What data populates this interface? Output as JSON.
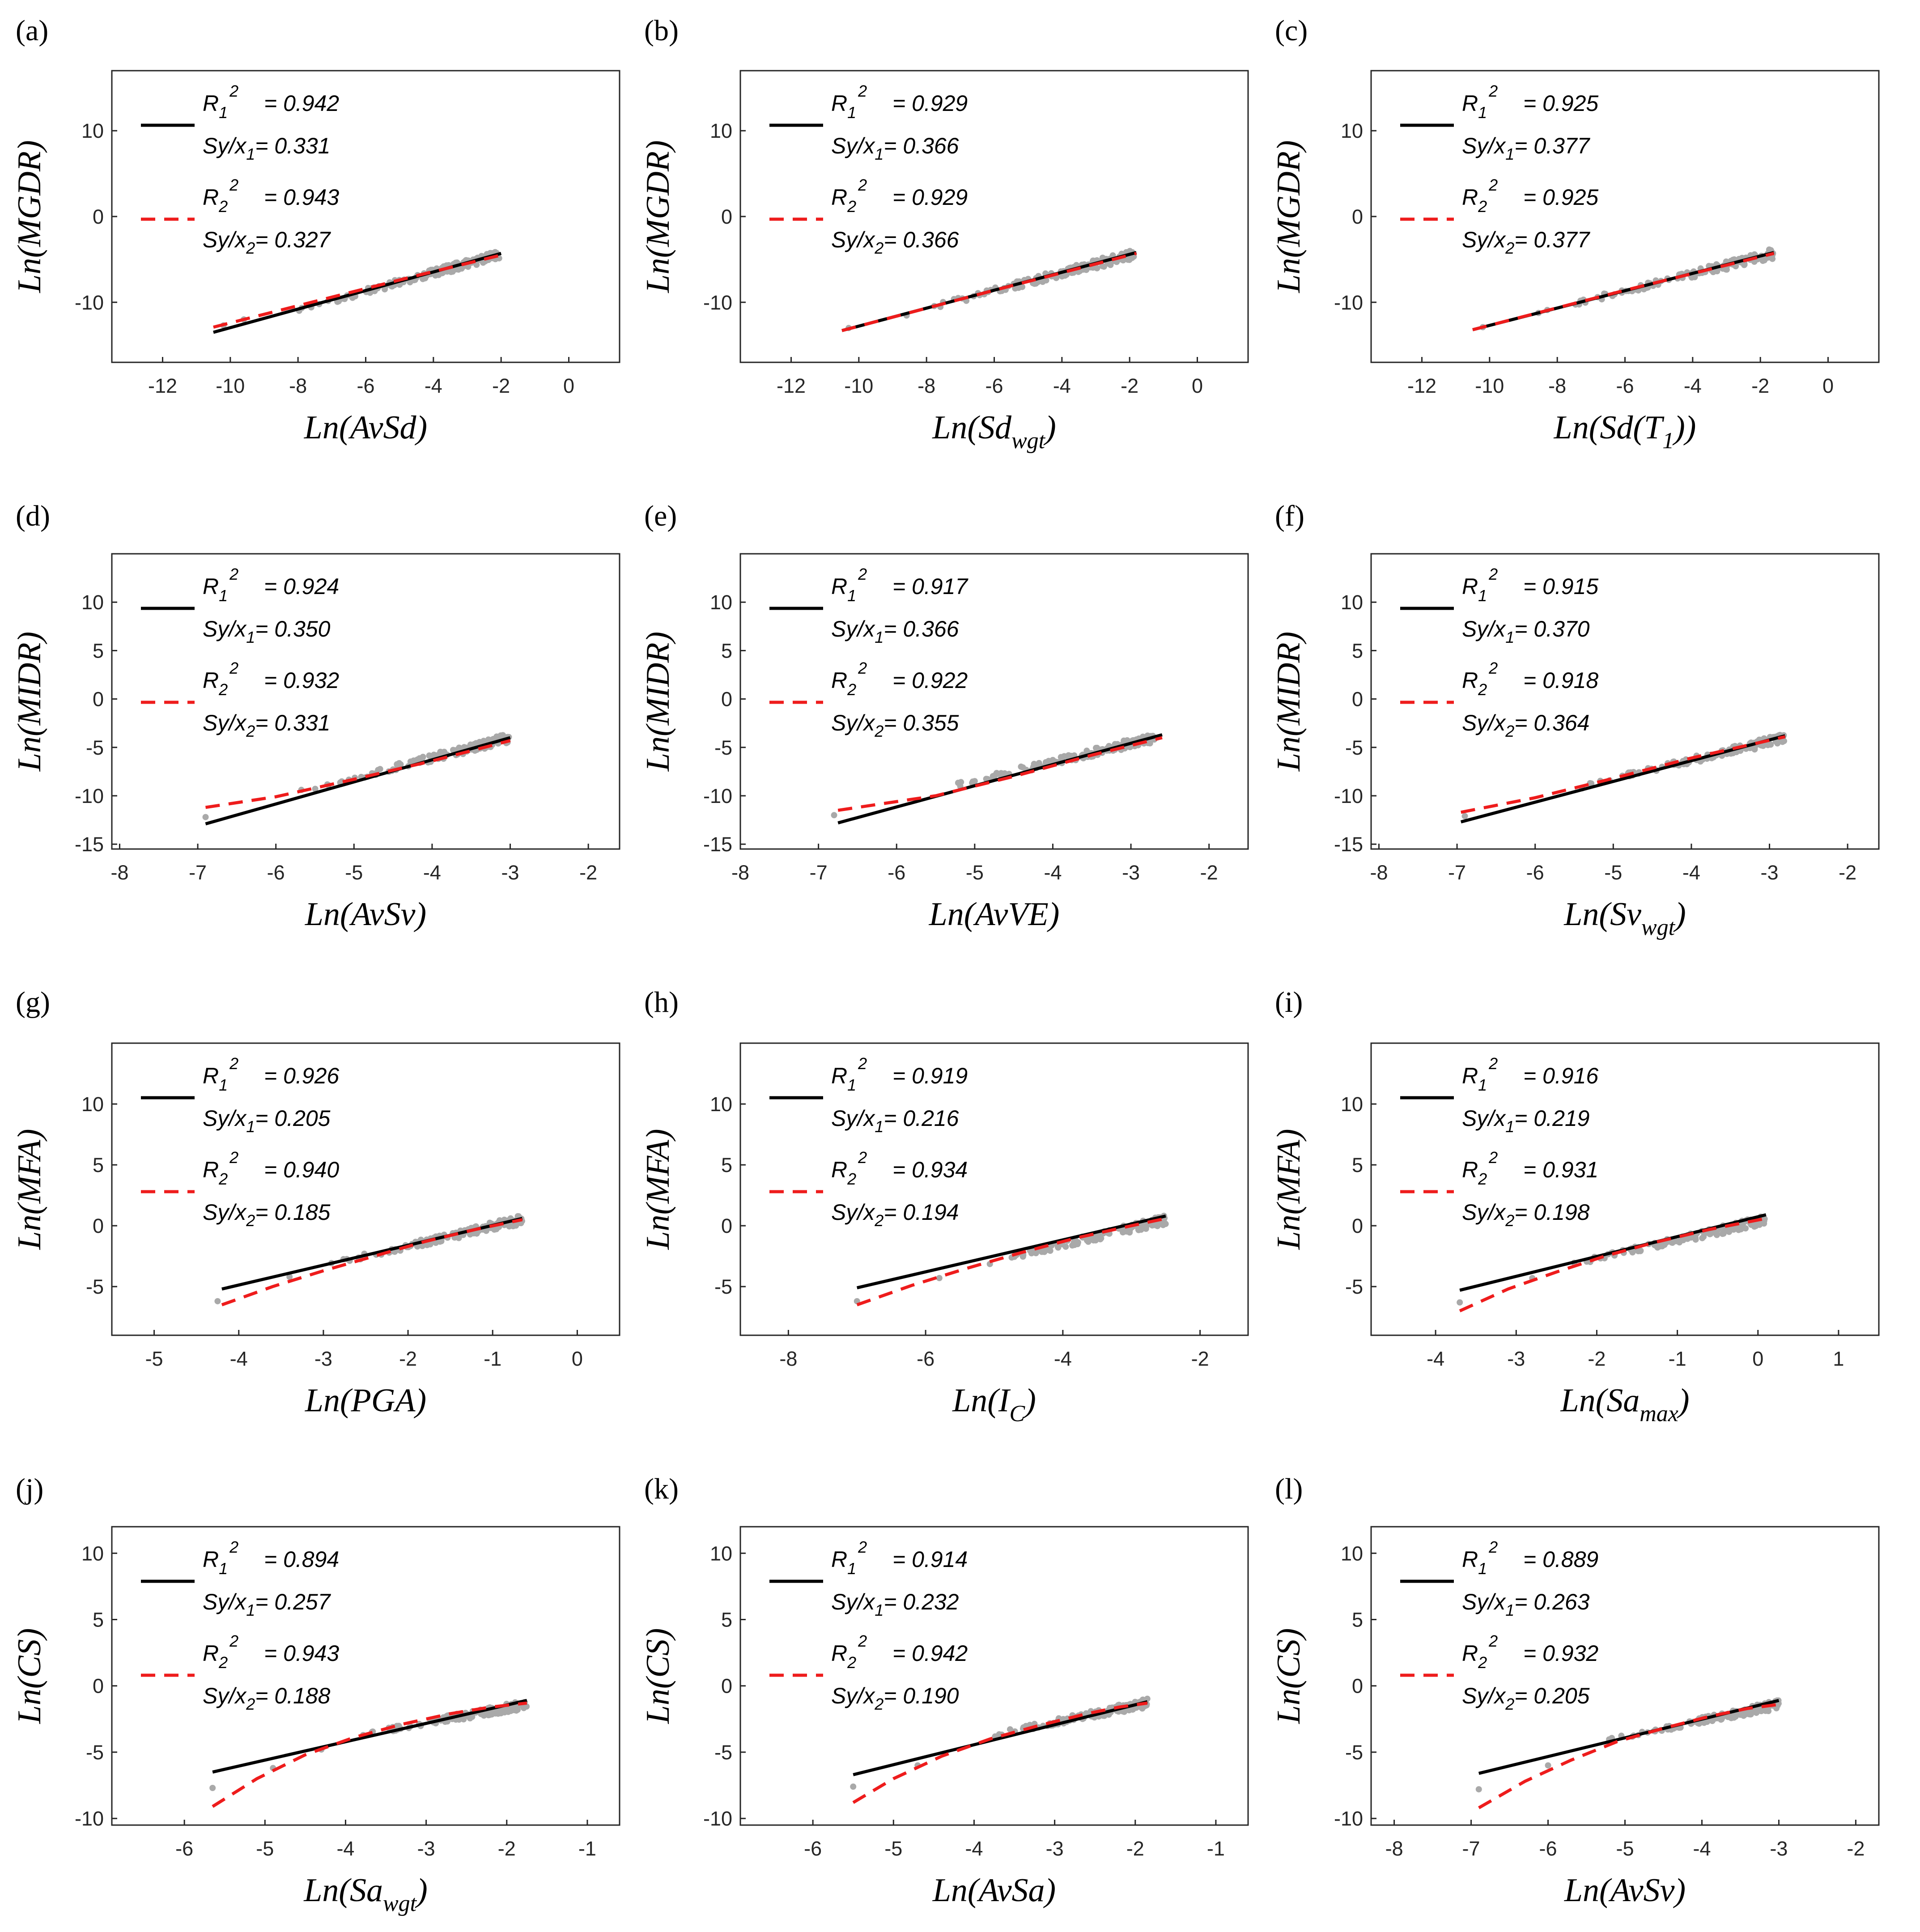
{
  "colors": {
    "fit1": "#000000",
    "fit2": "#ee1c1c",
    "scatter": "#a9a9a9",
    "axes": "#262626"
  },
  "chart_data": [
    {
      "panel": "(a)",
      "type": "scatter",
      "xlabel": {
        "main": "Ln(AvSd",
        "sub": "",
        "tail": ")"
      },
      "ylabel": "Ln(MGDR)",
      "xlim": [
        -13.5,
        1.5
      ],
      "ylim": [
        -17,
        17
      ],
      "xticks": [
        "-12",
        "-10",
        "-8",
        "-6",
        "-4",
        "-2",
        "0"
      ],
      "yticks": [
        "10",
        "0",
        "-10"
      ],
      "xtick_vals": [
        -12,
        -10,
        -8,
        -6,
        -4,
        -2,
        0
      ],
      "ytick_vals": [
        10,
        0,
        -10
      ],
      "legend": {
        "r1": "0.942",
        "s1": "0.331",
        "r2": "0.943",
        "s2": "0.327"
      },
      "fit1": {
        "x": [
          -10.5,
          -2.0
        ],
        "y": [
          -13.5,
          -4.3
        ]
      },
      "fit2": {
        "x": [
          -10.5,
          -8.5,
          -6.5,
          -4.5,
          -2.0
        ],
        "y": [
          -12.9,
          -10.9,
          -8.9,
          -6.9,
          -4.5
        ]
      },
      "cloud": {
        "x0": -9.0,
        "x1": -2.0,
        "ya": -12.0,
        "yb": -4.4,
        "spread": 0.55,
        "n": 140
      },
      "outliers": [
        [
          -10.2,
          -12.7
        ],
        [
          -9.6,
          -12.0
        ]
      ]
    },
    {
      "panel": "(b)",
      "type": "scatter",
      "xlabel": {
        "main": "Ln(Sd",
        "sub": "wgt",
        "tail": ")"
      },
      "ylabel": "Ln(MGDR)",
      "xlim": [
        -13.5,
        1.5
      ],
      "ylim": [
        -17,
        17
      ],
      "xticks": [
        "-12",
        "-10",
        "-8",
        "-6",
        "-4",
        "-2",
        "0"
      ],
      "yticks": [
        "10",
        "0",
        "-10"
      ],
      "xtick_vals": [
        -12,
        -10,
        -8,
        -6,
        -4,
        -2,
        0
      ],
      "ytick_vals": [
        10,
        0,
        -10
      ],
      "legend": {
        "r1": "0.929",
        "s1": "0.366",
        "r2": "0.929",
        "s2": "0.366"
      },
      "fit1": {
        "x": [
          -10.5,
          -1.8
        ],
        "y": [
          -13.3,
          -4.2
        ]
      },
      "fit2": {
        "x": [
          -10.5,
          -6.0,
          -1.8
        ],
        "y": [
          -13.3,
          -8.6,
          -4.3
        ]
      },
      "cloud": {
        "x0": -9.0,
        "x1": -1.8,
        "ya": -11.8,
        "yb": -4.3,
        "spread": 0.6,
        "n": 140
      },
      "outliers": [
        [
          -10.3,
          -13.0
        ]
      ]
    },
    {
      "panel": "(c)",
      "type": "scatter",
      "xlabel": {
        "main": "Ln(Sd(T",
        "sub": "1",
        "tail": "))"
      },
      "ylabel": "Ln(MGDR)",
      "xlim": [
        -13.5,
        1.5
      ],
      "ylim": [
        -17,
        17
      ],
      "xticks": [
        "-12",
        "-10",
        "-8",
        "-6",
        "-4",
        "-2",
        "0"
      ],
      "yticks": [
        "10",
        "0",
        "-10"
      ],
      "xtick_vals": [
        -12,
        -10,
        -8,
        -6,
        -4,
        -2,
        0
      ],
      "ytick_vals": [
        10,
        0,
        -10
      ],
      "legend": {
        "r1": "0.925",
        "s1": "0.377",
        "r2": "0.925",
        "s2": "0.377"
      },
      "fit1": {
        "x": [
          -10.5,
          -1.6
        ],
        "y": [
          -13.2,
          -4.2
        ]
      },
      "fit2": {
        "x": [
          -10.5,
          -6.0,
          -1.6
        ],
        "y": [
          -13.2,
          -8.6,
          -4.3
        ]
      },
      "cloud": {
        "x0": -9.0,
        "x1": -1.6,
        "ya": -11.7,
        "yb": -4.3,
        "spread": 0.6,
        "n": 140
      },
      "outliers": [
        [
          -10.2,
          -12.9
        ]
      ]
    },
    {
      "panel": "(d)",
      "type": "scatter",
      "xlabel": {
        "main": "Ln(AvSv",
        "sub": "",
        "tail": ")"
      },
      "ylabel": "Ln(MIDR)",
      "xlim": [
        -8.1,
        -1.6
      ],
      "ylim": [
        -15.5,
        15
      ],
      "xticks": [
        "-8",
        "-7",
        "-6",
        "-5",
        "-4",
        "-3",
        "-2"
      ],
      "yticks": [
        "10",
        "5",
        "0",
        "-5",
        "-10",
        "-15"
      ],
      "xtick_vals": [
        -8,
        -7,
        -6,
        -5,
        -4,
        -3,
        -2
      ],
      "ytick_vals": [
        10,
        5,
        0,
        -5,
        -10,
        -15
      ],
      "legend": {
        "r1": "0.924",
        "s1": "0.350",
        "r2": "0.932",
        "s2": "0.331"
      },
      "fit1": {
        "x": [
          -6.9,
          -3.0
        ],
        "y": [
          -12.9,
          -4.0
        ]
      },
      "fit2": {
        "x": [
          -6.9,
          -6.0,
          -5.0,
          -4.0,
          -3.0
        ],
        "y": [
          -11.2,
          -10.1,
          -8.3,
          -6.4,
          -4.3
        ]
      },
      "cloud": {
        "x0": -5.8,
        "x1": -3.0,
        "ya": -9.8,
        "yb": -4.0,
        "spread": 0.5,
        "n": 140
      },
      "outliers": [
        [
          -6.9,
          -12.2
        ]
      ]
    },
    {
      "panel": "(e)",
      "type": "scatter",
      "xlabel": {
        "main": "Ln(AvVE",
        "sub": "",
        "tail": ")"
      },
      "ylabel": "Ln(MIDR)",
      "xlim": [
        -8.0,
        -1.5
      ],
      "ylim": [
        -15.5,
        15
      ],
      "xticks": [
        "-8",
        "-7",
        "-6",
        "-5",
        "-4",
        "-3",
        "-2"
      ],
      "yticks": [
        "10",
        "5",
        "0",
        "-5",
        "-10",
        "-15"
      ],
      "xtick_vals": [
        -8,
        -7,
        -6,
        -5,
        -4,
        -3,
        -2
      ],
      "ytick_vals": [
        10,
        5,
        0,
        -5,
        -10,
        -15
      ],
      "legend": {
        "r1": "0.917",
        "s1": "0.366",
        "r2": "0.922",
        "s2": "0.355"
      },
      "fit1": {
        "x": [
          -6.75,
          -2.6
        ],
        "y": [
          -12.8,
          -3.7
        ]
      },
      "fit2": {
        "x": [
          -6.75,
          -5.5,
          -4.5,
          -3.5,
          -2.6
        ],
        "y": [
          -11.5,
          -10.0,
          -8.0,
          -5.8,
          -4.0
        ]
      },
      "cloud": {
        "x0": -5.7,
        "x1": -2.7,
        "ya": -9.8,
        "yb": -4.0,
        "spread": 0.5,
        "n": 140
      },
      "outliers": [
        [
          -6.8,
          -12.0
        ]
      ]
    },
    {
      "panel": "(f)",
      "type": "scatter",
      "xlabel": {
        "main": "Ln(Sv",
        "sub": "wgt",
        "tail": ")"
      },
      "ylabel": "Ln(MIDR)",
      "xlim": [
        -8.1,
        -1.6
      ],
      "ylim": [
        -15.5,
        15
      ],
      "xticks": [
        "-8",
        "-7",
        "-6",
        "-5",
        "-4",
        "-3",
        "-2"
      ],
      "yticks": [
        "10",
        "5",
        "0",
        "-5",
        "-10",
        "-15"
      ],
      "xtick_vals": [
        -8,
        -7,
        -6,
        -5,
        -4,
        -3,
        -2
      ],
      "ytick_vals": [
        10,
        5,
        0,
        -5,
        -10,
        -15
      ],
      "legend": {
        "r1": "0.915",
        "s1": "0.370",
        "r2": "0.918",
        "s2": "0.364"
      },
      "fit1": {
        "x": [
          -6.95,
          -2.8
        ],
        "y": [
          -12.7,
          -3.8
        ]
      },
      "fit2": {
        "x": [
          -6.95,
          -6.0,
          -5.0,
          -4.0,
          -2.8
        ],
        "y": [
          -11.7,
          -10.2,
          -8.2,
          -6.1,
          -3.9
        ]
      },
      "cloud": {
        "x0": -5.8,
        "x1": -2.8,
        "ya": -9.8,
        "yb": -4.0,
        "spread": 0.5,
        "n": 140
      },
      "outliers": [
        [
          -6.9,
          -12.1
        ]
      ]
    },
    {
      "panel": "(g)",
      "type": "scatter",
      "xlabel": {
        "main": "Ln(PGA",
        "sub": "",
        "tail": ")"
      },
      "ylabel": "Ln(MFA)",
      "xlim": [
        -5.5,
        0.5
      ],
      "ylim": [
        -9,
        15
      ],
      "xticks": [
        "-5",
        "-4",
        "-3",
        "-2",
        "-1",
        "0"
      ],
      "yticks": [
        "10",
        "5",
        "0",
        "-5"
      ],
      "xtick_vals": [
        -5,
        -4,
        -3,
        -2,
        -1,
        0
      ],
      "ytick_vals": [
        10,
        5,
        0,
        -5
      ],
      "legend": {
        "r1": "0.926",
        "s1": "0.205",
        "r2": "0.940",
        "s2": "0.185"
      },
      "fit1": {
        "x": [
          -4.2,
          -0.65
        ],
        "y": [
          -5.2,
          0.6
        ]
      },
      "fit2": {
        "x": [
          -4.2,
          -3.6,
          -3.0,
          -2.4,
          -1.8,
          -1.2,
          -0.65
        ],
        "y": [
          -6.5,
          -5.0,
          -3.7,
          -2.5,
          -1.3,
          -0.3,
          0.5
        ]
      },
      "cloud": {
        "x0": -3.2,
        "x1": -0.65,
        "ya": -3.6,
        "yb": 0.5,
        "spread": 0.4,
        "n": 140
      },
      "outliers": [
        [
          -4.25,
          -6.2
        ],
        [
          -3.4,
          -4.2
        ]
      ]
    },
    {
      "panel": "(h)",
      "type": "scatter",
      "xlabel": {
        "main": "Ln(I",
        "sub": "C",
        "tail": ")"
      },
      "ylabel": "Ln(MFA)",
      "xlim": [
        -8.7,
        -1.3
      ],
      "ylim": [
        -9,
        15
      ],
      "xticks": [
        "-8",
        "-6",
        "-4",
        "-2"
      ],
      "yticks": [
        "10",
        "5",
        "0",
        "-5"
      ],
      "xtick_vals": [
        -8,
        -6,
        -4,
        -2
      ],
      "ytick_vals": [
        10,
        5,
        0,
        -5
      ],
      "legend": {
        "r1": "0.919",
        "s1": "0.216",
        "r2": "0.934",
        "s2": "0.194"
      },
      "fit1": {
        "x": [
          -7.0,
          -2.5
        ],
        "y": [
          -5.1,
          0.8
        ]
      },
      "fit2": {
        "x": [
          -7.0,
          -6.2,
          -5.4,
          -4.6,
          -3.8,
          -3.0,
          -2.5
        ],
        "y": [
          -6.5,
          -4.9,
          -3.5,
          -2.2,
          -1.0,
          0.0,
          0.6
        ]
      },
      "cloud": {
        "x0": -5.4,
        "x1": -2.5,
        "ya": -3.5,
        "yb": 0.5,
        "spread": 0.4,
        "n": 140
      },
      "outliers": [
        [
          -7.0,
          -6.2
        ],
        [
          -5.8,
          -4.3
        ]
      ]
    },
    {
      "panel": "(i)",
      "type": "scatter",
      "xlabel": {
        "main": "Ln(Sa",
        "sub": "max",
        "tail": ")"
      },
      "ylabel": "Ln(MFA)",
      "xlim": [
        -4.8,
        1.5
      ],
      "ylim": [
        -9,
        15
      ],
      "xticks": [
        "-4",
        "-3",
        "-2",
        "-1",
        "0",
        "1"
      ],
      "yticks": [
        "10",
        "5",
        "0",
        "-5"
      ],
      "xtick_vals": [
        -4,
        -3,
        -2,
        -1,
        0,
        1
      ],
      "ytick_vals": [
        10,
        5,
        0,
        -5
      ],
      "legend": {
        "r1": "0.916",
        "s1": "0.219",
        "r2": "0.931",
        "s2": "0.198"
      },
      "fit1": {
        "x": [
          -3.7,
          0.1
        ],
        "y": [
          -5.3,
          0.9
        ]
      },
      "fit2": {
        "x": [
          -3.7,
          -3.1,
          -2.5,
          -1.9,
          -1.3,
          -0.6,
          0.1
        ],
        "y": [
          -7.0,
          -5.2,
          -3.8,
          -2.5,
          -1.4,
          -0.3,
          0.6
        ]
      },
      "cloud": {
        "x0": -2.6,
        "x1": 0.1,
        "ya": -3.6,
        "yb": 0.5,
        "spread": 0.4,
        "n": 140
      },
      "outliers": [
        [
          -3.7,
          -6.3
        ],
        [
          -2.8,
          -4.3
        ]
      ]
    },
    {
      "panel": "(j)",
      "type": "scatter",
      "xlabel": {
        "main": "Ln(Sa",
        "sub": "wgt",
        "tail": ")"
      },
      "ylabel": "Ln(CS)",
      "xlim": [
        -6.9,
        -0.6
      ],
      "ylim": [
        -10.5,
        12
      ],
      "xticks": [
        "-6",
        "-5",
        "-4",
        "-3",
        "-2",
        "-1"
      ],
      "yticks": [
        "10",
        "5",
        "0",
        "-5",
        "-10"
      ],
      "xtick_vals": [
        -6,
        -5,
        -4,
        -3,
        -2,
        -1
      ],
      "ytick_vals": [
        10,
        5,
        0,
        -5,
        -10
      ],
      "legend": {
        "r1": "0.894",
        "s1": "0.257",
        "r2": "0.943",
        "s2": "0.188"
      },
      "fit1": {
        "x": [
          -5.65,
          -1.75
        ],
        "y": [
          -6.5,
          -1.1
        ]
      },
      "fit2": {
        "x": [
          -5.65,
          -5.1,
          -4.5,
          -3.9,
          -3.3,
          -2.7,
          -2.2,
          -1.75
        ],
        "y": [
          -9.1,
          -7.0,
          -5.2,
          -3.9,
          -2.9,
          -2.1,
          -1.6,
          -1.3
        ]
      },
      "cloud": {
        "x0": -4.0,
        "x1": -1.75,
        "ya": -3.9,
        "yb": -1.4,
        "spread": 0.35,
        "n": 140
      },
      "outliers": [
        [
          -5.65,
          -7.7
        ],
        [
          -4.9,
          -6.2
        ],
        [
          -4.3,
          -4.8
        ]
      ]
    },
    {
      "panel": "(k)",
      "type": "scatter",
      "xlabel": {
        "main": "Ln(AvSa",
        "sub": "",
        "tail": ")"
      },
      "ylabel": "Ln(CS)",
      "xlim": [
        -6.9,
        -0.6
      ],
      "ylim": [
        -10.5,
        12
      ],
      "xticks": [
        "-6",
        "-5",
        "-4",
        "-3",
        "-2",
        "-1"
      ],
      "yticks": [
        "10",
        "5",
        "0",
        "-5",
        "-10"
      ],
      "xtick_vals": [
        -6,
        -5,
        -4,
        -3,
        -2,
        -1
      ],
      "ytick_vals": [
        10,
        5,
        0,
        -5,
        -10
      ],
      "legend": {
        "r1": "0.914",
        "s1": "0.232",
        "r2": "0.942",
        "s2": "0.190"
      },
      "fit1": {
        "x": [
          -5.5,
          -1.85
        ],
        "y": [
          -6.7,
          -1.2
        ]
      },
      "fit2": {
        "x": [
          -5.5,
          -5.0,
          -4.4,
          -3.8,
          -3.2,
          -2.6,
          -2.2,
          -1.85
        ],
        "y": [
          -8.8,
          -7.0,
          -5.3,
          -4.0,
          -3.0,
          -2.1,
          -1.6,
          -1.3
        ]
      },
      "cloud": {
        "x0": -4.0,
        "x1": -1.85,
        "ya": -4.0,
        "yb": -1.3,
        "spread": 0.35,
        "n": 140
      },
      "outliers": [
        [
          -5.5,
          -7.6
        ],
        [
          -4.7,
          -6.0
        ]
      ]
    },
    {
      "panel": "(l)",
      "type": "scatter",
      "xlabel": {
        "main": "Ln(AvSv",
        "sub": "",
        "tail": ")"
      },
      "ylabel": "Ln(CS)",
      "xlim": [
        -8.3,
        -1.7
      ],
      "ylim": [
        -10.5,
        12
      ],
      "xticks": [
        "-8",
        "-7",
        "-6",
        "-5",
        "-4",
        "-3",
        "-2"
      ],
      "yticks": [
        "10",
        "5",
        "0",
        "-5",
        "-10"
      ],
      "xtick_vals": [
        -8,
        -7,
        -6,
        -5,
        -4,
        -3,
        -2
      ],
      "ytick_vals": [
        10,
        5,
        0,
        -5,
        -10
      ],
      "legend": {
        "r1": "0.889",
        "s1": "0.263",
        "r2": "0.932",
        "s2": "0.205"
      },
      "fit1": {
        "x": [
          -6.9,
          -3.0
        ],
        "y": [
          -6.6,
          -1.1
        ]
      },
      "fit2": {
        "x": [
          -6.9,
          -6.3,
          -5.7,
          -5.1,
          -4.5,
          -3.9,
          -3.4,
          -3.0
        ],
        "y": [
          -9.2,
          -7.2,
          -5.6,
          -4.2,
          -3.2,
          -2.3,
          -1.7,
          -1.4
        ]
      },
      "cloud": {
        "x0": -5.3,
        "x1": -3.0,
        "ya": -4.2,
        "yb": -1.4,
        "spread": 0.35,
        "n": 140
      },
      "outliers": [
        [
          -6.9,
          -7.8
        ],
        [
          -6.0,
          -6.0
        ]
      ]
    }
  ]
}
